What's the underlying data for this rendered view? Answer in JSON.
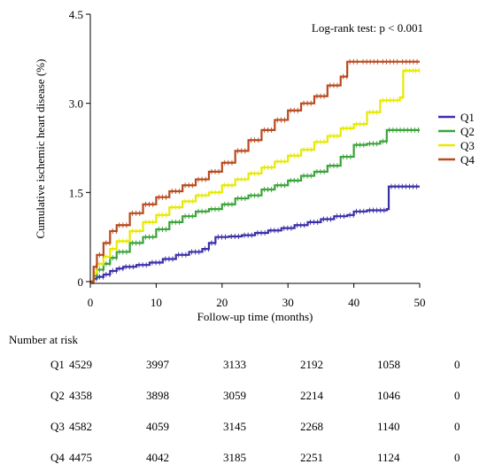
{
  "chart_data": {
    "type": "line",
    "subtype": "kaplan-meier-cumulative-incidence",
    "title": "",
    "annotation": "Log-rank test: p < 0.001",
    "xlabel": "Follow-up time (months)",
    "ylabel": "Cumulative ischemic heart disease (%)",
    "xlim": [
      0,
      50
    ],
    "ylim": [
      0,
      4.5
    ],
    "x_ticks": [
      0,
      10,
      20,
      30,
      40,
      50
    ],
    "y_ticks": [
      0,
      1.5,
      3.0,
      4.5
    ],
    "y_tick_labels": [
      "0",
      "1.5",
      "3.0",
      "4.5"
    ],
    "grid": false,
    "legend_position": "right",
    "series": [
      {
        "name": "Q1",
        "color": "#3b2fa8",
        "points": [
          [
            0,
            0
          ],
          [
            0.5,
            0.05
          ],
          [
            1,
            0.08
          ],
          [
            2,
            0.12
          ],
          [
            3,
            0.18
          ],
          [
            4,
            0.22
          ],
          [
            5,
            0.25
          ],
          [
            7,
            0.28
          ],
          [
            9,
            0.32
          ],
          [
            11,
            0.38
          ],
          [
            13,
            0.45
          ],
          [
            15,
            0.5
          ],
          [
            17,
            0.55
          ],
          [
            18,
            0.65
          ],
          [
            19,
            0.75
          ],
          [
            21,
            0.76
          ],
          [
            23,
            0.78
          ],
          [
            25,
            0.82
          ],
          [
            27,
            0.86
          ],
          [
            29,
            0.9
          ],
          [
            31,
            0.95
          ],
          [
            33,
            1.0
          ],
          [
            35,
            1.05
          ],
          [
            37,
            1.1
          ],
          [
            39,
            1.12
          ],
          [
            40,
            1.18
          ],
          [
            42,
            1.2
          ],
          [
            45,
            1.22
          ],
          [
            45.3,
            1.6
          ],
          [
            50,
            1.6
          ]
        ]
      },
      {
        "name": "Q2",
        "color": "#3aa33a",
        "points": [
          [
            0,
            0
          ],
          [
            0.5,
            0.1
          ],
          [
            1,
            0.2
          ],
          [
            2,
            0.3
          ],
          [
            3,
            0.4
          ],
          [
            4,
            0.5
          ],
          [
            6,
            0.65
          ],
          [
            8,
            0.75
          ],
          [
            10,
            0.88
          ],
          [
            12,
            1.0
          ],
          [
            14,
            1.1
          ],
          [
            16,
            1.18
          ],
          [
            18,
            1.22
          ],
          [
            20,
            1.3
          ],
          [
            22,
            1.4
          ],
          [
            24,
            1.45
          ],
          [
            26,
            1.55
          ],
          [
            28,
            1.62
          ],
          [
            30,
            1.7
          ],
          [
            32,
            1.78
          ],
          [
            34,
            1.85
          ],
          [
            36,
            1.95
          ],
          [
            38,
            2.1
          ],
          [
            40,
            2.3
          ],
          [
            42,
            2.32
          ],
          [
            44,
            2.36
          ],
          [
            45,
            2.55
          ],
          [
            50,
            2.55
          ]
        ]
      },
      {
        "name": "Q3",
        "color": "#e6ea00",
        "points": [
          [
            0,
            0
          ],
          [
            0.5,
            0.15
          ],
          [
            1,
            0.3
          ],
          [
            2,
            0.42
          ],
          [
            3,
            0.55
          ],
          [
            4,
            0.68
          ],
          [
            6,
            0.85
          ],
          [
            8,
            1.0
          ],
          [
            10,
            1.12
          ],
          [
            12,
            1.25
          ],
          [
            14,
            1.35
          ],
          [
            16,
            1.45
          ],
          [
            18,
            1.5
          ],
          [
            20,
            1.62
          ],
          [
            22,
            1.72
          ],
          [
            24,
            1.82
          ],
          [
            26,
            1.92
          ],
          [
            28,
            2.02
          ],
          [
            30,
            2.12
          ],
          [
            32,
            2.22
          ],
          [
            34,
            2.35
          ],
          [
            36,
            2.45
          ],
          [
            38,
            2.58
          ],
          [
            40,
            2.65
          ],
          [
            42,
            2.85
          ],
          [
            44,
            3.05
          ],
          [
            47,
            3.1
          ],
          [
            47.5,
            3.55
          ],
          [
            49,
            3.55
          ],
          [
            50,
            3.55
          ]
        ]
      },
      {
        "name": "Q4",
        "color": "#b84a1e",
        "points": [
          [
            0,
            0
          ],
          [
            0.5,
            0.25
          ],
          [
            1,
            0.45
          ],
          [
            2,
            0.65
          ],
          [
            3,
            0.85
          ],
          [
            4,
            0.95
          ],
          [
            6,
            1.15
          ],
          [
            8,
            1.3
          ],
          [
            10,
            1.42
          ],
          [
            12,
            1.52
          ],
          [
            14,
            1.62
          ],
          [
            16,
            1.72
          ],
          [
            18,
            1.85
          ],
          [
            20,
            2.0
          ],
          [
            22,
            2.2
          ],
          [
            24,
            2.38
          ],
          [
            26,
            2.55
          ],
          [
            28,
            2.72
          ],
          [
            30,
            2.88
          ],
          [
            32,
            3.0
          ],
          [
            34,
            3.12
          ],
          [
            36,
            3.3
          ],
          [
            38,
            3.45
          ],
          [
            39,
            3.7
          ],
          [
            41,
            3.7
          ],
          [
            44,
            3.7
          ],
          [
            47,
            3.7
          ],
          [
            50,
            3.7
          ]
        ]
      }
    ]
  },
  "risk_table": {
    "title": "Number at risk",
    "rows": [
      {
        "label": "Q1",
        "values": [
          "4529",
          "3997",
          "3133",
          "2192",
          "1058",
          "0"
        ]
      },
      {
        "label": "Q2",
        "values": [
          "4358",
          "3898",
          "3059",
          "2214",
          "1046",
          "0"
        ]
      },
      {
        "label": "Q3",
        "values": [
          "4582",
          "4059",
          "3145",
          "2268",
          "1140",
          "0"
        ]
      },
      {
        "label": "Q4",
        "values": [
          "4475",
          "4042",
          "3185",
          "2251",
          "1124",
          "0"
        ]
      }
    ]
  }
}
